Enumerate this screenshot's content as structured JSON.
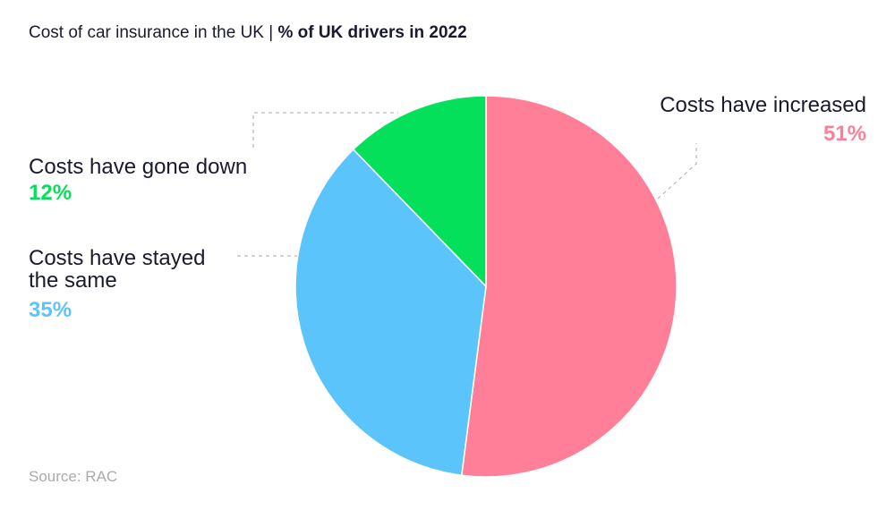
{
  "chart_data": {
    "type": "pie",
    "title": "Cost of car insurance in the UK |",
    "subtitle": "% of UK drivers in 2022",
    "categories": [
      "Costs have increased",
      "Costs have stayed the same",
      "Costs have gone down"
    ],
    "values": [
      51,
      35,
      12
    ],
    "value_labels": [
      "51%",
      "35%",
      "12%"
    ],
    "colors": [
      "#ff7f98",
      "#5bc5fb",
      "#05e05a"
    ],
    "source": "Source: RAC"
  }
}
